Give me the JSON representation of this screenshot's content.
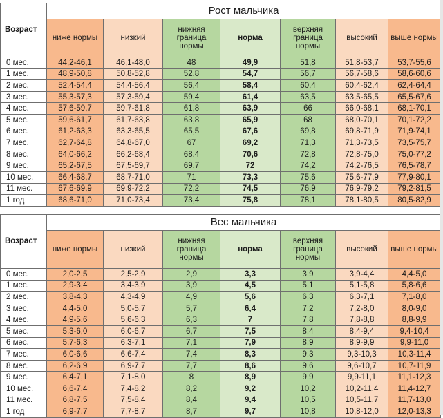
{
  "tables": [
    {
      "title": "Рост мальчика",
      "corner": "Возраст",
      "headers": [
        "ниже нормы",
        "низкий",
        "нижняя граница нормы",
        "норма",
        "верхняя граница нормы",
        "высокий",
        "выше нормы"
      ],
      "rows": [
        [
          "0 мес.",
          "44,2-46,1",
          "46,1-48,0",
          "48",
          "49,9",
          "51,8",
          "51,8-53,7",
          "53,7-55,6"
        ],
        [
          "1 мес.",
          "48,9-50,8",
          "50,8-52,8",
          "52,8",
          "54,7",
          "56,7",
          "56,7-58,6",
          "58,6-60,6"
        ],
        [
          "2 мес.",
          "52,4-54,4",
          "54,4-56,4",
          "56,4",
          "58,4",
          "60,4",
          "60,4-62,4",
          "62,4-64,4"
        ],
        [
          "3 мес.",
          "55,3-57,3",
          "57,3-59,4",
          "59,4",
          "61,4",
          "63,5",
          "63,5-65,5",
          "65,5-67,6"
        ],
        [
          "4 мес.",
          "57,6-59,7",
          "59,7-61,8",
          "61,8",
          "63,9",
          "66",
          "66,0-68,1",
          "68,1-70,1"
        ],
        [
          "5 мес.",
          "59,6-61,7",
          "61,7-63,8",
          "63,8",
          "65,9",
          "68",
          "68,0-70,1",
          "70,1-72,2"
        ],
        [
          "6 мес.",
          "61,2-63,3",
          "63,3-65,5",
          "65,5",
          "67,6",
          "69,8",
          "69,8-71,9",
          "71,9-74,1"
        ],
        [
          "7 мес.",
          "62,7-64,8",
          "64,8-67,0",
          "67",
          "69,2",
          "71,3",
          "71,3-73,5",
          "73,5-75,7"
        ],
        [
          "8 мес.",
          "64,0-66,2",
          "66,2-68,4",
          "68,4",
          "70,6",
          "72,8",
          "72,8-75,0",
          "75,0-77,2"
        ],
        [
          "9 мес.",
          "65,2-67,5",
          "67,5-69,7",
          "69,7",
          "72",
          "74,2",
          "74,2-76,5",
          "76,5-78,7"
        ],
        [
          "10 мес.",
          "66,4-68,7",
          "68,7-71,0",
          "71",
          "73,3",
          "75,6",
          "75,6-77,9",
          "77,9-80,1"
        ],
        [
          "11 мес.",
          "67,6-69,9",
          "69,9-72,2",
          "72,2",
          "74,5",
          "76,9",
          "76,9-79,2",
          "79,2-81,5"
        ],
        [
          "1 год",
          "68,6-71,0",
          "71,0-73,4",
          "73,4",
          "75,8",
          "78,1",
          "78,1-80,5",
          "80,5-82,9"
        ]
      ]
    },
    {
      "title": "Вес мальчика",
      "corner": "Возраст",
      "headers": [
        "ниже нормы",
        "низкий",
        "нижняя граница нормы",
        "норма",
        "верхняя граница нормы",
        "высокий",
        "выше нормы"
      ],
      "rows": [
        [
          "0 мес.",
          "2,0-2,5",
          "2,5-2,9",
          "2,9",
          "3,3",
          "3,9",
          "3,9-4,4",
          "4,4-5,0"
        ],
        [
          "1 мес.",
          "2,9-3,4",
          "3,4-3,9",
          "3,9",
          "4,5",
          "5,1",
          "5,1-5,8",
          "5,8-6,6"
        ],
        [
          "2 мес.",
          "3,8-4,3",
          "4,3-4,9",
          "4,9",
          "5,6",
          "6,3",
          "6,3-7,1",
          "7,1-8,0"
        ],
        [
          "3 мес.",
          "4,4-5,0",
          "5,0-5,7",
          "5,7",
          "6,4",
          "7,2",
          "7,2-8,0",
          "8,0-9,0"
        ],
        [
          "4 мес.",
          "4,9-5,6",
          "5,6-6,3",
          "6,3",
          "7",
          "7,8",
          "7,8-8,8",
          "8,8-9,9"
        ],
        [
          "5 мес.",
          "5,3-6,0",
          "6,0-6,7",
          "6,7",
          "7,5",
          "8,4",
          "8,4-9,4",
          "9,4-10,4"
        ],
        [
          "6 мес.",
          "5,7-6,3",
          "6,3-7,1",
          "7,1",
          "7,9",
          "8,9",
          "8,9-9,9",
          "9,9-11,0"
        ],
        [
          "7 мес.",
          "6,0-6,6",
          "6,6-7,4",
          "7,4",
          "8,3",
          "9,3",
          "9,3-10,3",
          "10,3-11,4"
        ],
        [
          "8 мес.",
          "6,2-6,9",
          "6,9-7,7",
          "7,7",
          "8,6",
          "9,6",
          "9,6-10,7",
          "10,7-11,9"
        ],
        [
          "9 мес.",
          "6,4-7,1",
          "7,1-8,0",
          "8",
          "8,9",
          "9,9",
          "9,9-11,1",
          "11,1-12,3"
        ],
        [
          "10 мес.",
          "6,6-7,4",
          "7,4-8,2",
          "8,2",
          "9,2",
          "10,2",
          "10,2-11,4",
          "11,4-12,7"
        ],
        [
          "11 мес.",
          "6,8-7,5",
          "7,5-8,4",
          "8,4",
          "9,4",
          "10,5",
          "10,5-11,7",
          "11,7-13,0"
        ],
        [
          "1 год",
          "6,9-7,7",
          "7,7-8,7",
          "8,7",
          "9,7",
          "10,8",
          "10,8-12,0",
          "12,0-13,3"
        ]
      ]
    }
  ]
}
